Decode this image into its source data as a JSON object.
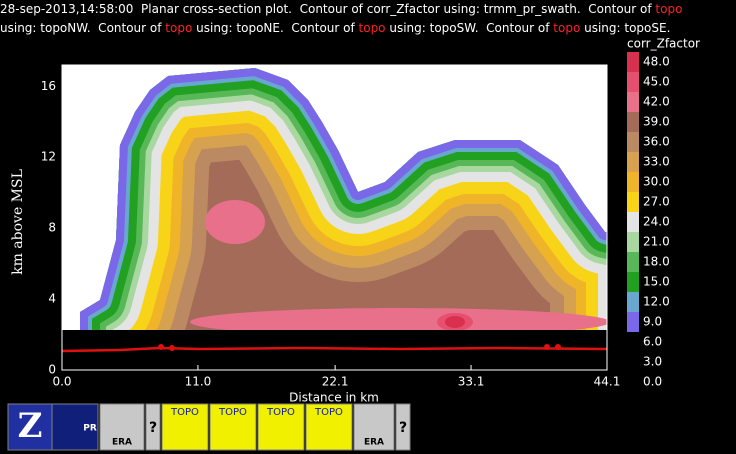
{
  "header": {
    "lines": [
      [
        "28-sep-2013,14:58:00  Planar cross-section plot.  Contour of corr_Zfactor using: trmm_pr_swath.  Contour of ",
        "topo"
      ],
      [
        "using: topoNW.  Contour of ",
        "topo",
        " using: topoNE.  Contour of ",
        "topo",
        " using: topoSW.  Contour of ",
        "topo",
        " using: topoSE."
      ]
    ]
  },
  "chart_data": {
    "type": "contour",
    "xlabel": "Distance in km",
    "ylabel": "km above MSL",
    "xlim": [
      0,
      44.1
    ],
    "xticks": [
      {
        "value": 0,
        "label": "0.0"
      },
      {
        "value": 11,
        "label": "11.0"
      },
      22.1,
      33.1,
      44.1
    ],
    "ylim": [
      0,
      17.2
    ],
    "yticks": [
      0,
      4,
      8,
      12,
      16
    ],
    "colorbar": {
      "title": "corr_Zfactor",
      "levels": [
        {
          "value": 48,
          "label": "48.0"
        },
        {
          "value": 45,
          "label": "45.0"
        },
        {
          "value": 42,
          "label": "42.0"
        },
        {
          "value": 39,
          "label": "39.0"
        },
        {
          "value": 36,
          "label": "36.0"
        },
        {
          "value": 33,
          "label": "33.0"
        },
        {
          "value": 30,
          "label": "30.0"
        },
        {
          "value": 27,
          "label": "27.0"
        },
        {
          "value": 24,
          "label": "24.0"
        },
        {
          "value": 21,
          "label": "21.0"
        },
        {
          "value": 18,
          "label": "18.0"
        },
        {
          "value": 15,
          "label": "15.0"
        },
        {
          "value": 12,
          "label": "12.0"
        },
        {
          "value": 9,
          "label": "9.0"
        },
        {
          "value": 6,
          "label": "6.0"
        },
        {
          "value": 3,
          "label": "3.0"
        },
        {
          "value": 0,
          "label": "0.0"
        }
      ],
      "colors": [
        "#d8304e",
        "#e6506e",
        "#e8708a",
        "#a46c58",
        "#bc8a62",
        "#d6a250",
        "#f0b428",
        "#f8d418",
        "#e4e4e4",
        "#a8d8a0",
        "#58b858",
        "#22a022",
        "#68a8d0",
        "#7a68e8",
        null,
        null,
        null
      ]
    }
  },
  "toolbar": {
    "buttons": [
      {
        "label": "Z"
      },
      {
        "label": "PR"
      },
      {
        "label": "ERA"
      },
      {
        "label": "?"
      },
      {
        "label": "TOPO"
      },
      {
        "label": "TOPO"
      },
      {
        "label": "TOPO"
      },
      {
        "label": "TOPO"
      },
      {
        "label": "ERA"
      },
      {
        "label": "?"
      }
    ]
  }
}
